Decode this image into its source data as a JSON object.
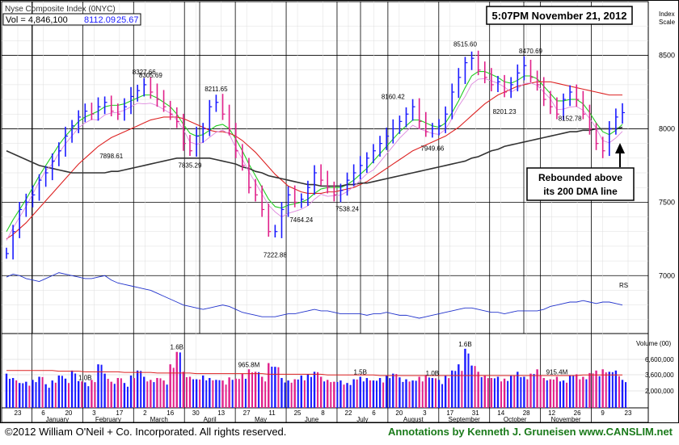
{
  "header": {
    "title": "Nyse Composite Index (0NYC)",
    "vol_label": "Vol = 4,846,100",
    "last_price": "8112.09",
    "change": "25.67"
  },
  "timestamp": "5:07PM November 21, 2012",
  "annotation": {
    "line1": "Rebounded above",
    "line2": "its 200 DMA line"
  },
  "footer": {
    "copyright": "©2012 William O'Neil + Co. Incorporated. All rights reserved.",
    "credit": "Annotations by Kenneth J. Gruneisen www.CANSLIM.net"
  },
  "colors": {
    "up_bar": "#1a1aff",
    "down_bar": "#e0208a",
    "ma_short": "#22cc22",
    "ma_mid": "#dd2222",
    "ma_200": "#333333",
    "ma_pink": "#dd88dd",
    "rs_line": "#2233cc",
    "vol_avg": "#dd2222",
    "credit_green": "#1a7a1a"
  },
  "chart_data": {
    "type": "line",
    "title": "Nyse Composite Index (0NYC)",
    "price_axis_title": [
      "Index",
      "Scale"
    ],
    "y_ticks": [
      7000,
      7500,
      8000,
      8500
    ],
    "ylim": [
      6800,
      8750
    ],
    "volume_axis_title": "Volume (00)",
    "volume_ticks": [
      "6,600,000",
      "3,600,000",
      "2,000,000"
    ],
    "x_day_labels": [
      "23",
      "6",
      "20",
      "3",
      "17",
      "2",
      "16",
      "30",
      "13",
      "27",
      "11",
      "25",
      "8",
      "22",
      "6",
      "20",
      "3",
      "17",
      "31",
      "14",
      "28",
      "12",
      "26",
      "9",
      "23"
    ],
    "x_month_labels": [
      "January",
      "February",
      "March",
      "April",
      "May",
      "June",
      "July",
      "August",
      "September",
      "October",
      "November"
    ],
    "price_labels": [
      {
        "text": "8327.66",
        "value": 8327.66
      },
      {
        "text": "8305.69",
        "value": 8305.69
      },
      {
        "text": "7898.61",
        "value": 7898.61
      },
      {
        "text": "7835.29",
        "value": 7835.29
      },
      {
        "text": "8211.65",
        "value": 8211.65
      },
      {
        "text": "7222.88",
        "value": 7222.88
      },
      {
        "text": "7464.24",
        "value": 7464.24
      },
      {
        "text": "7538.24",
        "value": 7538.24
      },
      {
        "text": "8160.42",
        "value": 8160.42
      },
      {
        "text": "7949.66",
        "value": 7949.66
      },
      {
        "text": "8515.60",
        "value": 8515.6
      },
      {
        "text": "8201.23",
        "value": 8201.23
      },
      {
        "text": "8470.69",
        "value": 8470.69
      },
      {
        "text": "8152.78",
        "value": 8152.78
      }
    ],
    "volume_labels": [
      "1.0B",
      "1.6B",
      "965.8M",
      "1.5B",
      "1.0B",
      "1.6B",
      "915.4M"
    ],
    "rs_label": "RS",
    "series": [
      {
        "values": [
          7150,
          7300,
          7450,
          7500,
          7550,
          7650,
          7700,
          7780,
          7850,
          7950,
          8020,
          8080,
          8120,
          8100,
          8150,
          8180,
          8120,
          8100,
          8150,
          8220,
          8260,
          8300,
          8250,
          8200,
          8150,
          8100,
          8050,
          7900,
          7850,
          7950,
          8000,
          8150,
          8180,
          8100,
          8000,
          7850,
          7750,
          7600,
          7550,
          7450,
          7300,
          7300,
          7450,
          7550,
          7500,
          7520,
          7600,
          7700,
          7650,
          7600,
          7550,
          7580,
          7650,
          7700,
          7750,
          7800,
          7850,
          7900,
          7950,
          8000,
          8050,
          8100,
          8150,
          8050,
          7980,
          8000,
          8020,
          8100,
          8250,
          8350,
          8450,
          8480,
          8400,
          8350,
          8300,
          8320,
          8250,
          8300,
          8380,
          8430,
          8350,
          8300,
          8200,
          8150,
          8100,
          8200,
          8250,
          8200,
          8100,
          8000,
          7900,
          7850,
          8000,
          8080,
          8110
        ]
      },
      {
        "values": [
          7300,
          7380,
          7450,
          7520,
          7600,
          7680,
          7750,
          7820,
          7890,
          7950,
          8000,
          8050,
          8080,
          8100,
          8120,
          8150,
          8160,
          8160,
          8170,
          8190,
          8210,
          8230,
          8230,
          8210,
          8180,
          8150,
          8100,
          8030,
          7970,
          7950,
          7960,
          7990,
          8020,
          8030,
          8000,
          7930,
          7850,
          7760,
          7680,
          7600,
          7520,
          7470,
          7460,
          7480,
          7490,
          7500,
          7520,
          7560,
          7590,
          7600,
          7600,
          7600,
          7620,
          7650,
          7690,
          7730,
          7780,
          7830,
          7880,
          7930,
          7980,
          8020,
          8060,
          8060,
          8040,
          8020,
          8010,
          8040,
          8110,
          8190,
          8280,
          8360,
          8390,
          8390,
          8370,
          8350,
          8320,
          8310,
          8330,
          8360,
          8360,
          8340,
          8290,
          8240,
          8190,
          8190,
          8200,
          8200,
          8170,
          8110,
          8040,
          7980,
          7960,
          7990,
          8030
        ]
      },
      {
        "values": [
          7250,
          7280,
          7320,
          7360,
          7410,
          7460,
          7510,
          7560,
          7610,
          7660,
          7710,
          7760,
          7800,
          7840,
          7880,
          7910,
          7940,
          7960,
          7980,
          8000,
          8020,
          8040,
          8060,
          8070,
          8080,
          8080,
          8080,
          8070,
          8050,
          8030,
          8010,
          7990,
          7980,
          7980,
          7970,
          7950,
          7920,
          7880,
          7840,
          7790,
          7740,
          7690,
          7650,
          7610,
          7590,
          7570,
          7560,
          7560,
          7560,
          7570,
          7570,
          7580,
          7590,
          7600,
          7620,
          7640,
          7670,
          7700,
          7730,
          7760,
          7790,
          7820,
          7850,
          7870,
          7890,
          7910,
          7930,
          7950,
          7980,
          8010,
          8050,
          8090,
          8130,
          8170,
          8200,
          8230,
          8250,
          8270,
          8290,
          8300,
          8310,
          8320,
          8320,
          8320,
          8310,
          8300,
          8290,
          8280,
          8270,
          8260,
          8250,
          8240,
          8230,
          8230,
          8230
        ]
      },
      {
        "values": [
          7850,
          7830,
          7810,
          7790,
          7770,
          7750,
          7740,
          7730,
          7720,
          7710,
          7700,
          7700,
          7700,
          7700,
          7700,
          7700,
          7710,
          7710,
          7720,
          7730,
          7740,
          7750,
          7760,
          7770,
          7780,
          7790,
          7800,
          7800,
          7800,
          7800,
          7800,
          7800,
          7790,
          7780,
          7770,
          7760,
          7740,
          7730,
          7710,
          7700,
          7680,
          7670,
          7660,
          7650,
          7640,
          7630,
          7620,
          7620,
          7610,
          7610,
          7610,
          7610,
          7620,
          7620,
          7630,
          7630,
          7640,
          7650,
          7660,
          7670,
          7680,
          7690,
          7700,
          7710,
          7720,
          7730,
          7740,
          7750,
          7760,
          7770,
          7780,
          7800,
          7810,
          7830,
          7850,
          7860,
          7880,
          7890,
          7900,
          7910,
          7920,
          7930,
          7940,
          7950,
          7960,
          7970,
          7980,
          7980,
          7990,
          7990,
          8000,
          8000,
          8000,
          8000,
          8010
        ]
      },
      {
        "values": [
          6990,
          7010,
          7000,
          6980,
          6970,
          6960,
          6980,
          7000,
          7020,
          7010,
          7000,
          6990,
          6980,
          6980,
          6990,
          7000,
          6970,
          6950,
          6940,
          6930,
          6920,
          6910,
          6900,
          6880,
          6860,
          6840,
          6820,
          6800,
          6790,
          6780,
          6770,
          6780,
          6790,
          6800,
          6790,
          6770,
          6750,
          6740,
          6730,
          6720,
          6720,
          6720,
          6730,
          6740,
          6740,
          6750,
          6760,
          6770,
          6760,
          6760,
          6750,
          6740,
          6740,
          6740,
          6740,
          6730,
          6740,
          6740,
          6750,
          6740,
          6730,
          6730,
          6720,
          6710,
          6720,
          6730,
          6740,
          6750,
          6760,
          6770,
          6780,
          6780,
          6770,
          6760,
          6750,
          6750,
          6740,
          6750,
          6760,
          6760,
          6760,
          6760,
          6770,
          6790,
          6800,
          6810,
          6820,
          6820,
          6830,
          6820,
          6810,
          6820,
          6820,
          6810,
          6800
        ]
      }
    ],
    "volume": [
      55,
      48,
      40,
      42,
      45,
      50,
      38,
      44,
      52,
      47,
      60,
      43,
      41,
      45,
      70,
      55,
      42,
      48,
      40,
      52,
      60,
      50,
      45,
      48,
      44,
      70,
      90,
      58,
      50,
      46,
      52,
      48,
      45,
      44,
      49,
      47,
      55,
      62,
      58,
      50,
      72,
      66,
      48,
      44,
      46,
      52,
      54,
      58,
      50,
      45,
      42,
      44,
      40,
      46,
      50,
      48,
      44,
      48,
      52,
      55,
      49,
      46,
      44,
      50,
      53,
      48,
      45,
      52,
      60,
      70,
      95,
      68,
      58,
      52,
      48,
      50,
      47,
      52,
      58,
      50,
      55,
      62,
      48,
      46,
      50,
      44,
      52,
      54,
      50,
      56,
      60,
      62,
      58,
      60,
      45
    ],
    "volume_avg": [
      60,
      60,
      60,
      60,
      60,
      60,
      60,
      60,
      59,
      59,
      59,
      59,
      58,
      58,
      58,
      58,
      58,
      58,
      57,
      57,
      57,
      57,
      57,
      56,
      56,
      56,
      56,
      56,
      56,
      55,
      55,
      55,
      55,
      55,
      55,
      55,
      55,
      55,
      55,
      55,
      54,
      54,
      54,
      54,
      54,
      54,
      54,
      54,
      54,
      53,
      53,
      53,
      53,
      53,
      53,
      53,
      53,
      52,
      52,
      52,
      52,
      52,
      52,
      52,
      52,
      52,
      52,
      52,
      52,
      52,
      52,
      52,
      52,
      52,
      52,
      52,
      52,
      52,
      52,
      52,
      52,
      52,
      52,
      52,
      52,
      52,
      52,
      52,
      53,
      53,
      53,
      53,
      53,
      53,
      53
    ]
  }
}
